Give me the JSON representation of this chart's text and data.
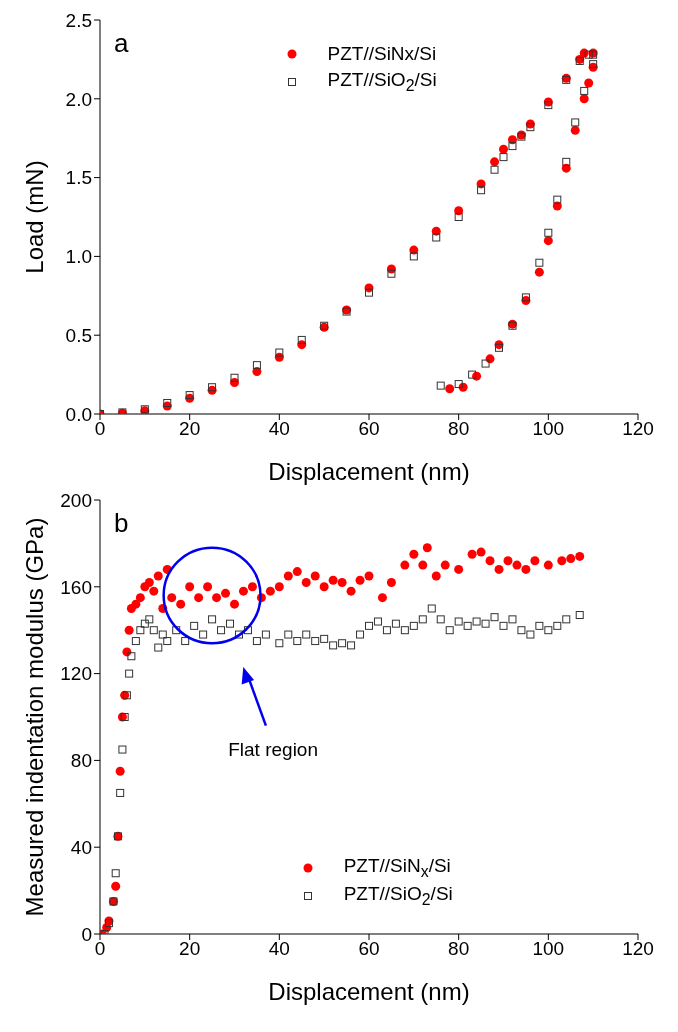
{
  "chart_data": [
    {
      "type": "scatter",
      "xlabel": "Displacement (nm)",
      "ylabel": "Load (mN)",
      "annotations": [
        "a"
      ],
      "xlim": [
        0,
        120
      ],
      "xticks": [
        0,
        20,
        40,
        60,
        80,
        100,
        120
      ],
      "ylim": [
        0,
        2.5
      ],
      "yticks": [
        {
          "value": 0,
          "label": "0.0"
        },
        {
          "value": 0.5,
          "label": "0.5"
        },
        {
          "value": 1,
          "label": "1.0"
        },
        {
          "value": 1.5,
          "label": "1.5"
        },
        {
          "value": 2,
          "label": "2.0"
        },
        {
          "value": 2.5,
          "label": "2.5"
        }
      ],
      "legend": "top",
      "series": [
        {
          "name": "PZT//SiNx/Si",
          "color": "#ff0000",
          "marker": "circle",
          "x": [
            0,
            5,
            10,
            15,
            20,
            25,
            30,
            35,
            40,
            45,
            50,
            55,
            60,
            65,
            70,
            75,
            80,
            85,
            88,
            90,
            92,
            94,
            96,
            100,
            104,
            107,
            108,
            110,
            110,
            109,
            108,
            106,
            104,
            102,
            100,
            98,
            95,
            92,
            89,
            87,
            84,
            81,
            78
          ],
          "values": [
            0,
            0.005,
            0.02,
            0.05,
            0.1,
            0.15,
            0.2,
            0.27,
            0.36,
            0.44,
            0.55,
            0.66,
            0.8,
            0.92,
            1.04,
            1.16,
            1.29,
            1.46,
            1.6,
            1.68,
            1.74,
            1.77,
            1.84,
            1.98,
            2.13,
            2.25,
            2.29,
            2.29,
            2.2,
            2.1,
            2.0,
            1.8,
            1.56,
            1.32,
            1.1,
            0.9,
            0.72,
            0.57,
            0.44,
            0.35,
            0.24,
            0.17,
            0.16
          ]
        },
        {
          "name": "PZT//SiO$_{2}$/Si",
          "color": "#333333",
          "marker": "square",
          "x": [
            0,
            5,
            10,
            15,
            20,
            25,
            30,
            35,
            40,
            45,
            50,
            55,
            60,
            65,
            70,
            75,
            80,
            85,
            88,
            90,
            92,
            94,
            96,
            100,
            104,
            107,
            109,
            110,
            110,
            108,
            106,
            104,
            102,
            100,
            98,
            95,
            92,
            89,
            86,
            83,
            80,
            76
          ],
          "values": [
            0,
            0.01,
            0.03,
            0.07,
            0.12,
            0.17,
            0.23,
            0.31,
            0.39,
            0.47,
            0.56,
            0.65,
            0.77,
            0.89,
            1.0,
            1.12,
            1.25,
            1.42,
            1.55,
            1.63,
            1.7,
            1.76,
            1.82,
            1.96,
            2.12,
            2.24,
            2.28,
            2.28,
            2.22,
            2.05,
            1.85,
            1.6,
            1.36,
            1.15,
            0.96,
            0.74,
            0.56,
            0.42,
            0.32,
            0.25,
            0.19,
            0.18
          ]
        }
      ]
    },
    {
      "type": "scatter",
      "xlabel": "Displacement (nm)",
      "ylabel": "Measured indentation modulus (GPa)",
      "annotations": [
        "b",
        "Flat region"
      ],
      "xlim": [
        0,
        120
      ],
      "xticks": [
        0,
        20,
        40,
        60,
        80,
        100,
        120
      ],
      "ylim": [
        0,
        200
      ],
      "yticks": [
        0,
        40,
        80,
        120,
        160,
        200
      ],
      "legend": "bottom",
      "series": [
        {
          "name": "PZT//SiN$_{x}$/Si",
          "color": "#ff0000",
          "marker": "circle",
          "x": [
            0.5,
            1.5,
            2,
            3,
            3.5,
            4,
            4.5,
            5,
            5.5,
            6,
            6.5,
            7,
            8,
            9,
            10,
            11,
            12,
            13,
            14,
            15,
            16,
            18,
            20,
            22,
            24,
            26,
            28,
            30,
            32,
            34,
            36,
            38,
            40,
            42,
            44,
            46,
            48,
            50,
            52,
            54,
            56,
            58,
            60,
            63,
            65,
            68,
            70,
            72,
            73,
            75,
            77,
            80,
            83,
            85,
            87,
            89,
            91,
            93,
            95,
            97,
            100,
            103,
            105,
            107
          ],
          "values": [
            0,
            3,
            6,
            15,
            22,
            45,
            75,
            100,
            110,
            130,
            140,
            150,
            152,
            155,
            160,
            162,
            158,
            165,
            150,
            168,
            155,
            152,
            160,
            155,
            160,
            155,
            157,
            152,
            158,
            160,
            155,
            158,
            160,
            165,
            167,
            162,
            165,
            160,
            163,
            162,
            158,
            163,
            165,
            155,
            162,
            170,
            175,
            170,
            178,
            165,
            170,
            168,
            175,
            176,
            172,
            168,
            172,
            170,
            168,
            172,
            170,
            172,
            173,
            174
          ]
        },
        {
          "name": "PZT//SiO$_{2}$/Si",
          "color": "#333333",
          "marker": "square",
          "x": [
            1,
            2,
            3,
            3.5,
            4,
            4.5,
            5,
            5.5,
            6,
            6.5,
            7,
            8,
            9,
            10,
            11,
            12,
            13,
            14,
            15,
            17,
            19,
            21,
            23,
            25,
            27,
            29,
            31,
            33,
            35,
            37,
            40,
            42,
            44,
            46,
            48,
            50,
            52,
            54,
            56,
            58,
            60,
            62,
            64,
            66,
            68,
            70,
            72,
            74,
            76,
            78,
            80,
            82,
            84,
            86,
            88,
            90,
            92,
            94,
            96,
            98,
            100,
            102,
            104,
            107
          ],
          "values": [
            0,
            5,
            15,
            28,
            45,
            65,
            85,
            100,
            110,
            120,
            128,
            135,
            140,
            143,
            145,
            140,
            132,
            138,
            135,
            140,
            135,
            142,
            138,
            145,
            140,
            143,
            138,
            140,
            135,
            138,
            134,
            138,
            135,
            138,
            135,
            136,
            133,
            134,
            133,
            138,
            142,
            144,
            140,
            143,
            140,
            142,
            145,
            150,
            145,
            140,
            144,
            142,
            144,
            143,
            146,
            142,
            145,
            140,
            138,
            142,
            140,
            142,
            145,
            147
          ]
        }
      ]
    }
  ]
}
